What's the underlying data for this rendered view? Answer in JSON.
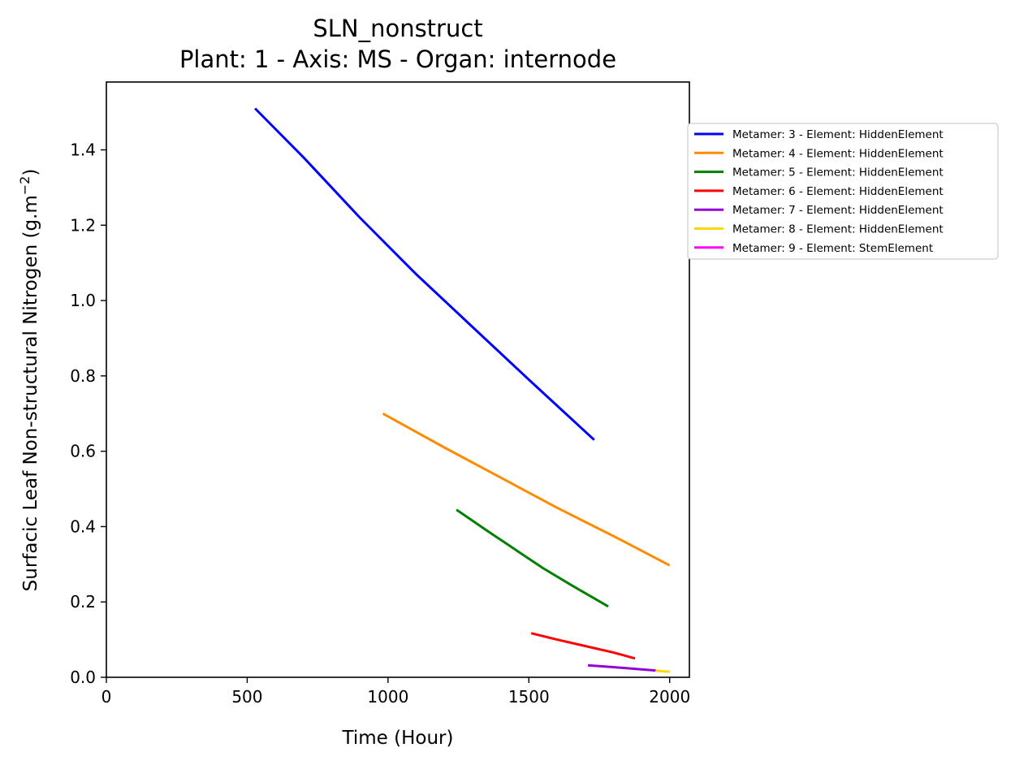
{
  "chart_data": {
    "type": "line",
    "title": "SLN_nonstruct",
    "subtitle": "Plant: 1 - Axis: MS - Organ: internode",
    "xlabel": "Time (Hour)",
    "ylabel": "Surfacic Leaf Non-structural Nitrogen (g.m",
    "ylabel_sup": "−2",
    "ylabel_end": ")",
    "xlim": [
      0,
      2070
    ],
    "ylim": [
      0,
      1.58
    ],
    "xticks": [
      0,
      500,
      1000,
      1500,
      2000
    ],
    "yticks": [
      0.0,
      0.2,
      0.4,
      0.6,
      0.8,
      1.0,
      1.2,
      1.4
    ],
    "grid": false,
    "legend_position": "outside-right-top",
    "series": [
      {
        "name": "Metamer: 3 - Element: HiddenElement",
        "color": "#0000ff",
        "points": [
          [
            528,
            1.51
          ],
          [
            700,
            1.38
          ],
          [
            900,
            1.22
          ],
          [
            1100,
            1.07
          ],
          [
            1300,
            0.93
          ],
          [
            1500,
            0.79
          ],
          [
            1732,
            0.63
          ]
        ]
      },
      {
        "name": "Metamer: 4 - Element: HiddenElement",
        "color": "#ff8c00",
        "points": [
          [
            982,
            0.7
          ],
          [
            1200,
            0.61
          ],
          [
            1400,
            0.53
          ],
          [
            1600,
            0.45
          ],
          [
            1800,
            0.375
          ],
          [
            2000,
            0.297
          ]
        ]
      },
      {
        "name": "Metamer: 5 - Element: HiddenElement",
        "color": "#008000",
        "points": [
          [
            1243,
            0.445
          ],
          [
            1350,
            0.39
          ],
          [
            1450,
            0.34
          ],
          [
            1550,
            0.29
          ],
          [
            1650,
            0.245
          ],
          [
            1782,
            0.188
          ]
        ]
      },
      {
        "name": "Metamer: 6 - Element: HiddenElement",
        "color": "#ff0000",
        "points": [
          [
            1508,
            0.117
          ],
          [
            1600,
            0.1
          ],
          [
            1700,
            0.083
          ],
          [
            1800,
            0.066
          ],
          [
            1877,
            0.05
          ]
        ]
      },
      {
        "name": "Metamer: 7 - Element: HiddenElement",
        "color": "#9400d3",
        "points": [
          [
            1710,
            0.032
          ],
          [
            1800,
            0.027
          ],
          [
            1900,
            0.021
          ],
          [
            1950,
            0.018
          ]
        ]
      },
      {
        "name": "Metamer: 8 - Element: HiddenElement",
        "color": "#ffd700",
        "points": [
          [
            1950,
            0.018
          ],
          [
            1975,
            0.016
          ],
          [
            2000,
            0.015
          ]
        ]
      },
      {
        "name": "Metamer: 9 - Element: StemElement",
        "color": "#ff00ff",
        "points": []
      }
    ]
  }
}
